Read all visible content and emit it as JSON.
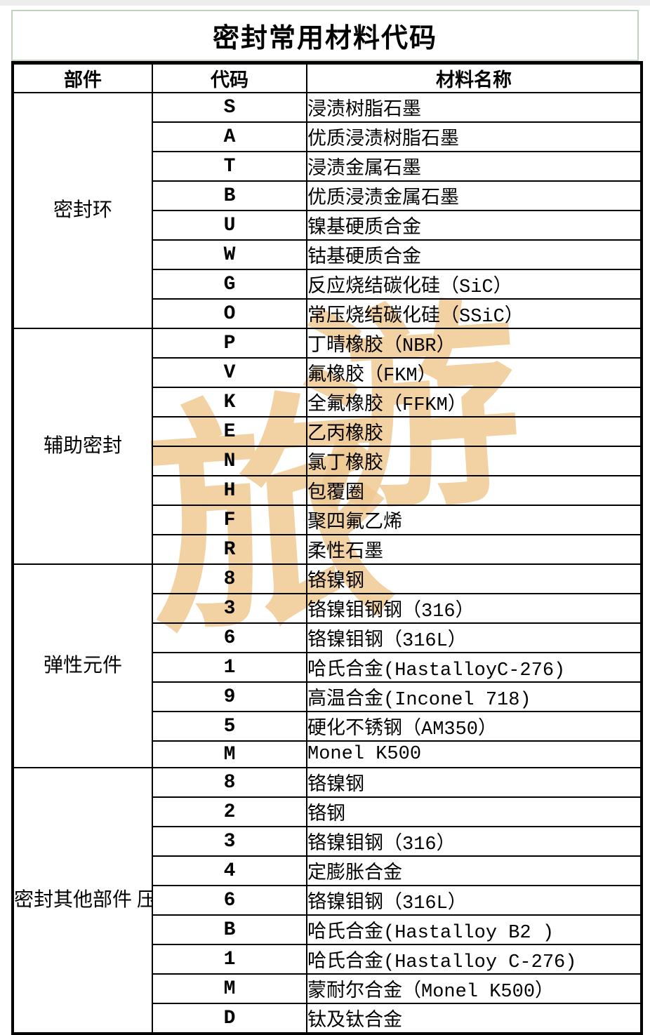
{
  "page": {
    "title": "密封常用材料代码"
  },
  "watermark": {
    "char1": "旅",
    "char2": "游",
    "color": "#f0c992"
  },
  "table": {
    "headers": [
      "部件",
      "代码",
      "材料名称"
    ],
    "sections": [
      {
        "part": "密封环",
        "rows": [
          [
            "S",
            "浸渍树脂石墨"
          ],
          [
            "A",
            "优质浸渍树脂石墨"
          ],
          [
            "T",
            "浸渍金属石墨"
          ],
          [
            "B",
            "优质浸渍金属石墨"
          ],
          [
            "U",
            "镍基硬质合金"
          ],
          [
            "W",
            "钴基硬质合金"
          ],
          [
            "G",
            "反应烧结碳化硅（SiC）"
          ],
          [
            "O",
            "常压烧结碳化硅（SSiC）"
          ]
        ]
      },
      {
        "part": "辅助密封",
        "rows": [
          [
            "P",
            "丁晴橡胶（NBR）"
          ],
          [
            "V",
            "氟橡胶（FKM）"
          ],
          [
            "K",
            "全氟橡胶（FFKM）"
          ],
          [
            "E",
            "乙丙橡胶"
          ],
          [
            "N",
            "氯丁橡胶"
          ],
          [
            "H",
            "包覆圈"
          ],
          [
            "F",
            "聚四氟乙烯"
          ],
          [
            "R",
            "柔性石墨"
          ]
        ]
      },
      {
        "part": "弹性元件",
        "rows": [
          [
            "8",
            "铬镍钢"
          ],
          [
            "3",
            "铬镍钼钢钢（316）"
          ],
          [
            "6",
            "铬镍钼钢（316L）"
          ],
          [
            "1",
            "哈氏合金(HastalloyC-276)"
          ],
          [
            "9",
            "高温合金(Inconel 718)"
          ],
          [
            "5",
            "硬化不锈钢（AM350）"
          ],
          [
            "M",
            "Monel K500"
          ]
        ]
      },
      {
        "part": "密封其他部件\n压盖和轴套",
        "rows": [
          [
            "8",
            "铬镍钢"
          ],
          [
            "2",
            "铬钢"
          ],
          [
            "3",
            "铬镍钼钢（316）"
          ],
          [
            "4",
            "定膨胀合金"
          ],
          [
            "6",
            "铬镍钼钢（316L）"
          ],
          [
            "B",
            "哈氏合金(Hastalloy B2 )"
          ],
          [
            "1",
            "哈氏合金(Hastalloy C-276)"
          ],
          [
            "M",
            "蒙耐尔合金（Monel K500）"
          ],
          [
            "D",
            "钛及钛合金"
          ]
        ]
      }
    ]
  }
}
